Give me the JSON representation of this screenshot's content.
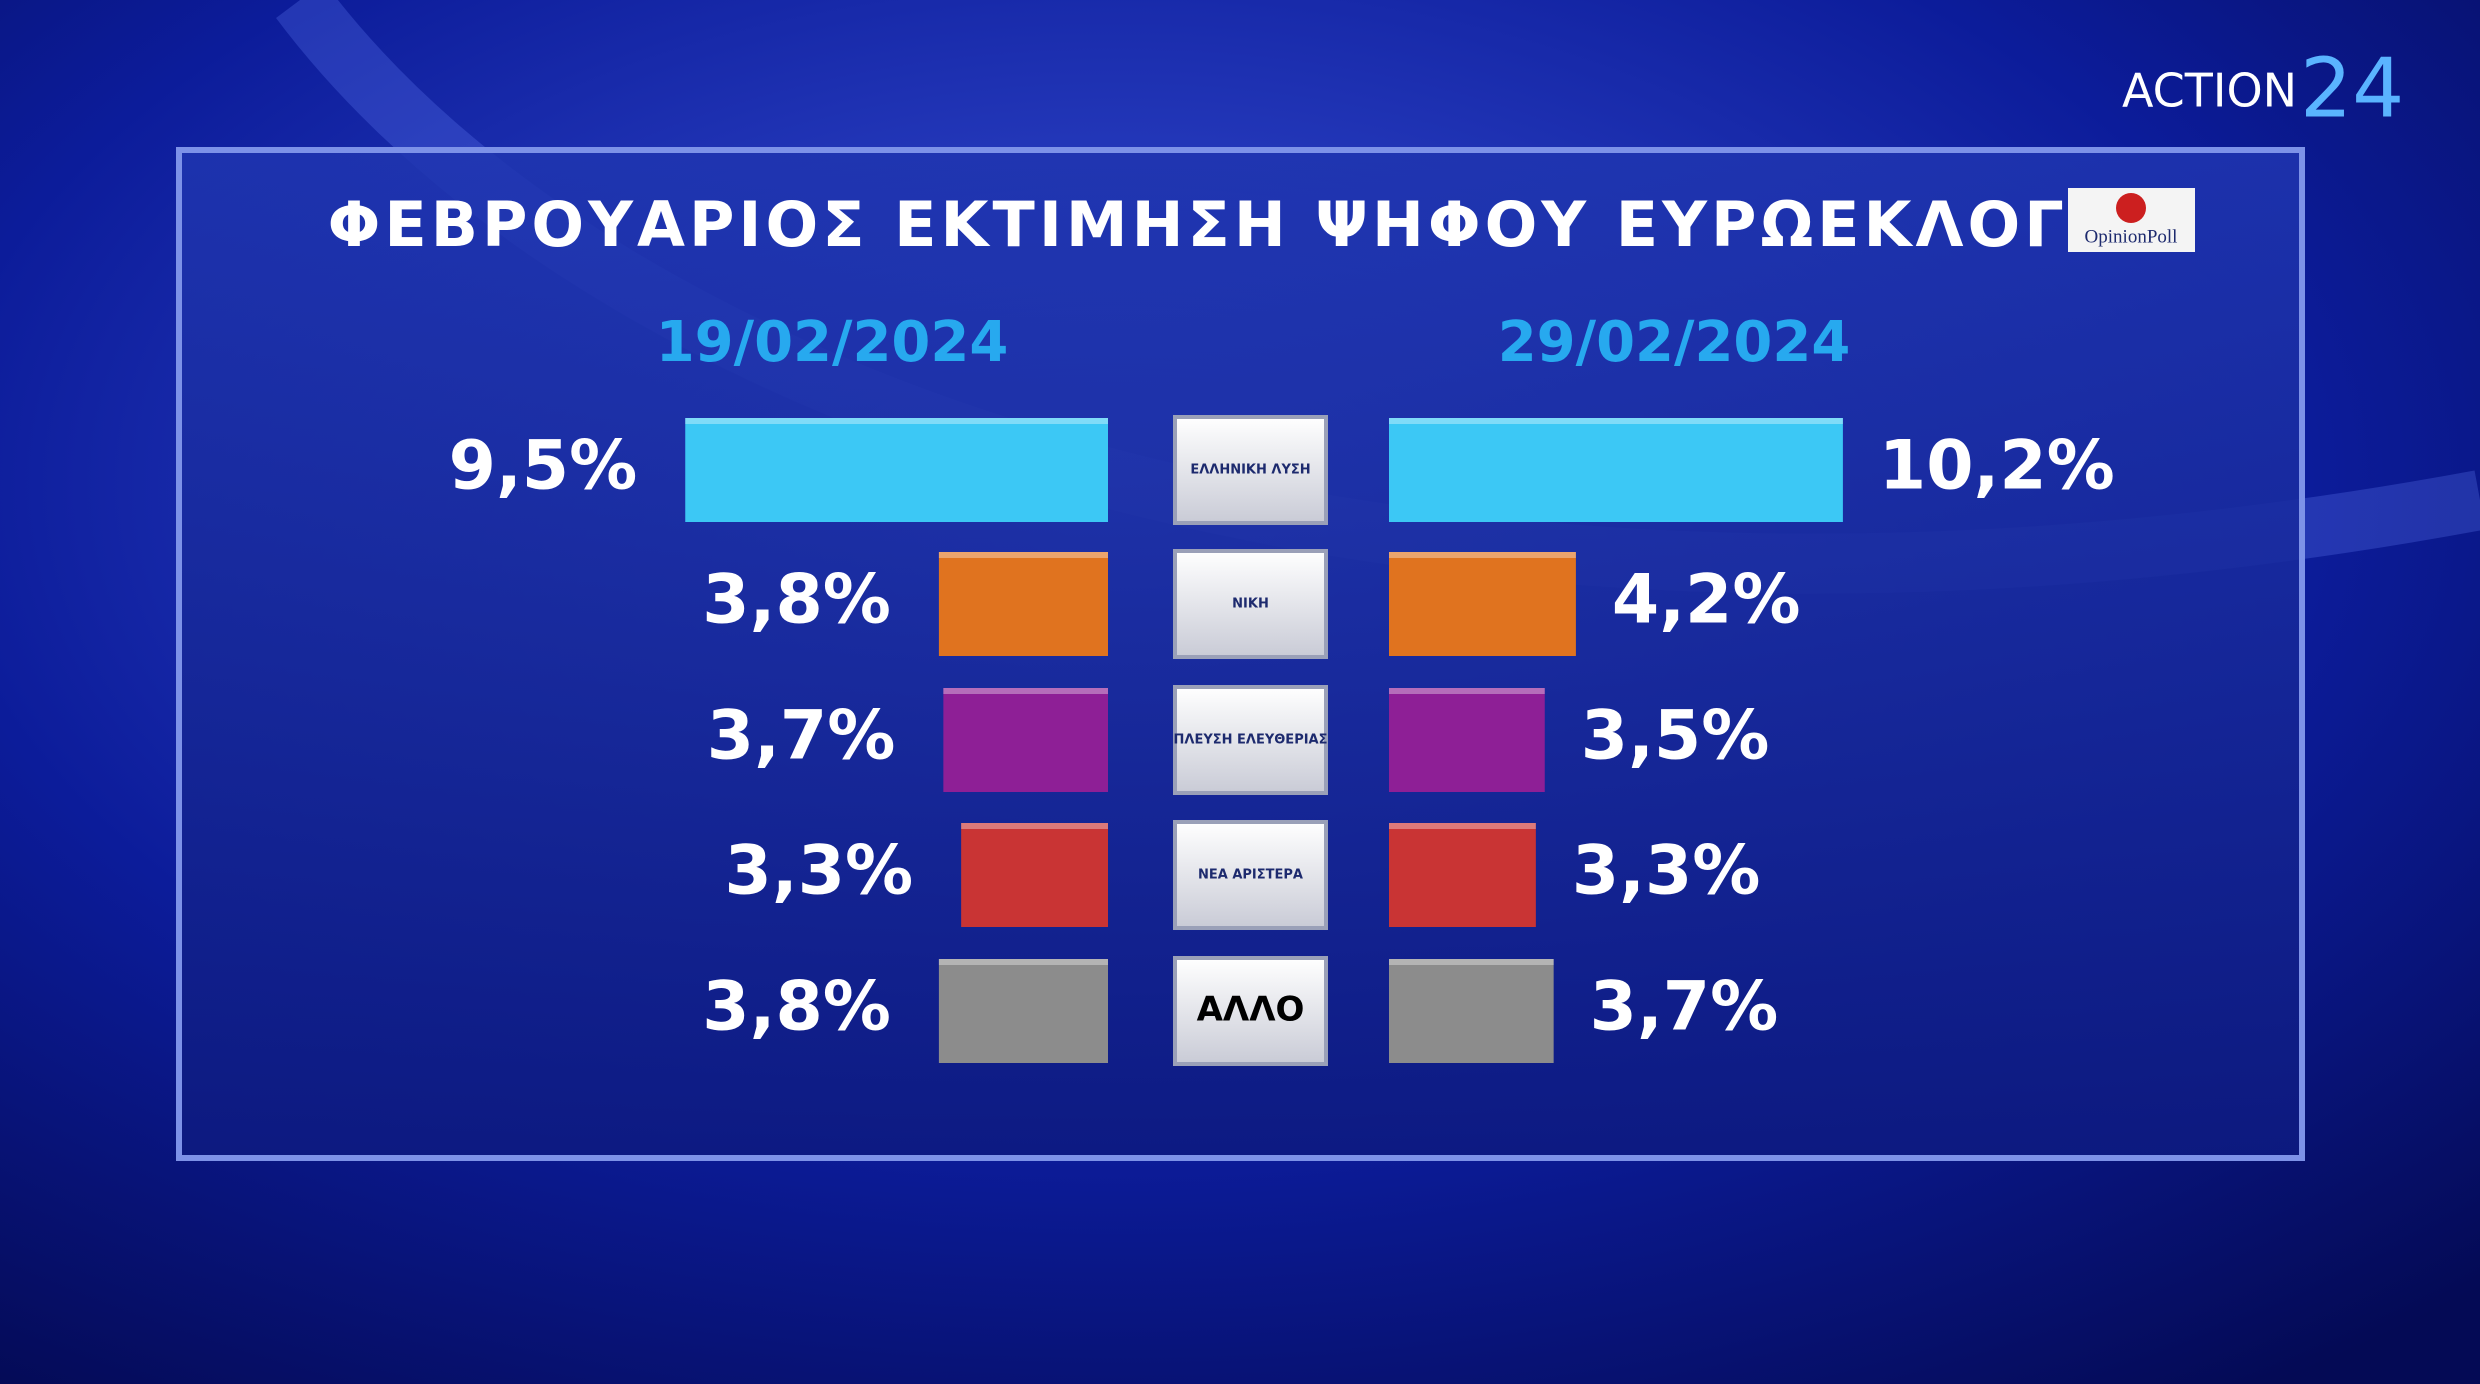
{
  "chart_data": {
    "type": "butterfly-bar",
    "title": "ΦΕΒΡΟΥΑΡΙΟΣ ΕΚΤΙΜΗΣΗ ΨΗΦΟΥ ΕΥΡΩΕΚΛΟΓΩΝ",
    "source": "OpinionPoll",
    "channel": "ACTION",
    "channel_number": "24",
    "categories": [
      "ΕΛΛΗΝΙΚΗ ΛΥΣΗ",
      "ΝΙΚΗ",
      "ΠΛΕΥΣΗ ΕΛΕΥΘΕΡΙΑΣ",
      "ΝΕΑ ΑΡΙΣΤΕΡΑ",
      "ΑΛΛΟ"
    ],
    "colors": [
      "#3cc8f5",
      "#e0731f",
      "#8e1f96",
      "#c93434",
      "#8c8c8c"
    ],
    "series": [
      {
        "name": "19/02/2024",
        "values": [
          9.5,
          3.8,
          3.7,
          3.3,
          3.8
        ],
        "value_labels": [
          "9,5%",
          "3,8%",
          "3,7%",
          "3,3%",
          "3,8%"
        ]
      },
      {
        "name": "29/02/2024",
        "values": [
          10.2,
          4.2,
          3.5,
          3.3,
          3.7
        ],
        "value_labels": [
          "10,2%",
          "4,2%",
          "3,5%",
          "3,3%",
          "3,7%"
        ]
      }
    ]
  }
}
